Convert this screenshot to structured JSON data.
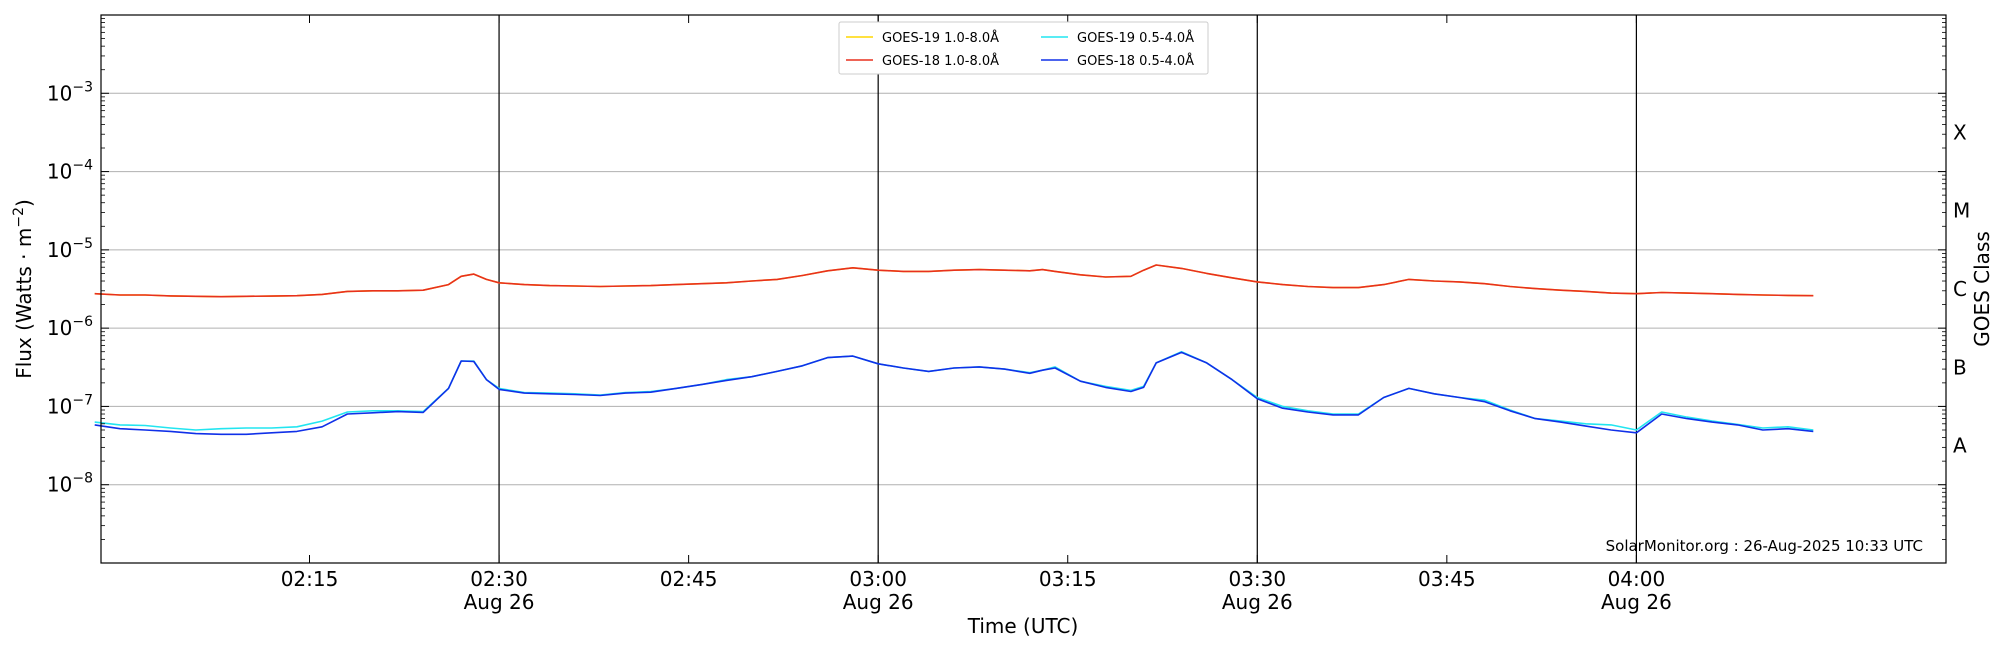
{
  "chart_data": {
    "type": "line",
    "xlabel": "Time (UTC)",
    "ylabel": "Flux (Watts · m",
    "ylabel_sup": "−2",
    "ylabel_end": ")",
    "right_ylabel": "GOES Class",
    "y_scale": "log",
    "ylim": [
      1e-09,
      0.01
    ],
    "xlim": [
      "01:58:30",
      "04:24:30"
    ],
    "grid": "horizontal at decades",
    "legend_position": "top-center",
    "annotation": "SolarMonitor.org : 26-Aug-2025 10:33 UTC",
    "y_ticks": [
      {
        "value": 1e-08,
        "base": "10",
        "exp": "−8"
      },
      {
        "value": 1e-07,
        "base": "10",
        "exp": "−7"
      },
      {
        "value": 1e-06,
        "base": "10",
        "exp": "−6"
      },
      {
        "value": 1e-05,
        "base": "10",
        "exp": "−5"
      },
      {
        "value": 0.0001,
        "base": "10",
        "exp": "−4"
      },
      {
        "value": 0.001,
        "base": "10",
        "exp": "−3"
      }
    ],
    "x_ticks": [
      {
        "time": "02:15",
        "label": "02:15",
        "date": ""
      },
      {
        "time": "02:30",
        "label": "02:30",
        "date": "Aug 26"
      },
      {
        "time": "02:45",
        "label": "02:45",
        "date": ""
      },
      {
        "time": "03:00",
        "label": "03:00",
        "date": "Aug 26"
      },
      {
        "time": "03:15",
        "label": "03:15",
        "date": ""
      },
      {
        "time": "03:30",
        "label": "03:30",
        "date": "Aug 26"
      },
      {
        "time": "03:45",
        "label": "03:45",
        "date": ""
      },
      {
        "time": "04:00",
        "label": "04:00",
        "date": "Aug 26"
      }
    ],
    "date_lines": [
      "02:30",
      "03:00",
      "03:30",
      "04:00"
    ],
    "goes_classes": [
      {
        "label": "A",
        "value": 3.16e-08
      },
      {
        "label": "B",
        "value": 3.16e-07
      },
      {
        "label": "C",
        "value": 3.16e-06
      },
      {
        "label": "M",
        "value": 3.16e-05
      },
      {
        "label": "X",
        "value": 0.000316
      }
    ],
    "x": [
      "01:58",
      "02:00",
      "02:02",
      "02:04",
      "02:06",
      "02:08",
      "02:10",
      "02:12",
      "02:14",
      "02:16",
      "02:18",
      "02:20",
      "02:22",
      "02:24",
      "02:26",
      "02:27",
      "02:28",
      "02:29",
      "02:30",
      "02:32",
      "02:34",
      "02:36",
      "02:38",
      "02:40",
      "02:42",
      "02:44",
      "02:46",
      "02:48",
      "02:50",
      "02:52",
      "02:54",
      "02:56",
      "02:58",
      "03:00",
      "03:02",
      "03:04",
      "03:06",
      "03:08",
      "03:10",
      "03:12",
      "03:13",
      "03:14",
      "03:16",
      "03:18",
      "03:20",
      "03:21",
      "03:22",
      "03:24",
      "03:26",
      "03:28",
      "03:30",
      "03:32",
      "03:34",
      "03:36",
      "03:38",
      "03:40",
      "03:42",
      "03:44",
      "03:46",
      "03:48",
      "03:50",
      "03:52",
      "03:54",
      "03:56",
      "03:58",
      "04:00",
      "04:02",
      "04:04",
      "04:06",
      "04:08",
      "04:10",
      "04:12",
      "04:14"
    ],
    "series": [
      {
        "name": "GOES-19 1.0-8.0Å",
        "color": "#ffd700",
        "values": [
          2.75e-06,
          2.65e-06,
          2.65e-06,
          2.58e-06,
          2.55e-06,
          2.52e-06,
          2.55e-06,
          2.57e-06,
          2.6e-06,
          2.7e-06,
          2.95e-06,
          3e-06,
          3e-06,
          3.05e-06,
          3.6e-06,
          4.6e-06,
          4.9e-06,
          4.2e-06,
          3.8e-06,
          3.6e-06,
          3.5e-06,
          3.45e-06,
          3.4e-06,
          3.45e-06,
          3.5e-06,
          3.6e-06,
          3.7e-06,
          3.8e-06,
          4e-06,
          4.2e-06,
          4.7e-06,
          5.4e-06,
          5.9e-06,
          5.5e-06,
          5.3e-06,
          5.3e-06,
          5.5e-06,
          5.6e-06,
          5.5e-06,
          5.4e-06,
          5.6e-06,
          5.3e-06,
          4.8e-06,
          4.5e-06,
          4.6e-06,
          5.5e-06,
          6.4e-06,
          5.8e-06,
          5e-06,
          4.4e-06,
          3.9e-06,
          3.6e-06,
          3.4e-06,
          3.3e-06,
          3.3e-06,
          3.6e-06,
          4.2e-06,
          4e-06,
          3.9e-06,
          3.7e-06,
          3.4e-06,
          3.2e-06,
          3.05e-06,
          2.95e-06,
          2.8e-06,
          2.75e-06,
          2.85e-06,
          2.8e-06,
          2.75e-06,
          2.7e-06,
          2.65e-06,
          2.62e-06,
          2.6e-06
        ]
      },
      {
        "name": "GOES-18 1.0-8.0Å",
        "color": "#e8301e",
        "values": [
          2.75e-06,
          2.65e-06,
          2.65e-06,
          2.58e-06,
          2.55e-06,
          2.52e-06,
          2.55e-06,
          2.57e-06,
          2.6e-06,
          2.7e-06,
          2.95e-06,
          3e-06,
          3e-06,
          3.05e-06,
          3.6e-06,
          4.6e-06,
          4.9e-06,
          4.2e-06,
          3.8e-06,
          3.6e-06,
          3.5e-06,
          3.45e-06,
          3.4e-06,
          3.45e-06,
          3.5e-06,
          3.6e-06,
          3.7e-06,
          3.8e-06,
          4e-06,
          4.2e-06,
          4.7e-06,
          5.4e-06,
          5.9e-06,
          5.5e-06,
          5.3e-06,
          5.3e-06,
          5.5e-06,
          5.6e-06,
          5.5e-06,
          5.4e-06,
          5.6e-06,
          5.3e-06,
          4.8e-06,
          4.5e-06,
          4.6e-06,
          5.5e-06,
          6.4e-06,
          5.8e-06,
          5e-06,
          4.4e-06,
          3.9e-06,
          3.6e-06,
          3.4e-06,
          3.3e-06,
          3.3e-06,
          3.6e-06,
          4.2e-06,
          4e-06,
          3.9e-06,
          3.7e-06,
          3.4e-06,
          3.2e-06,
          3.05e-06,
          2.95e-06,
          2.8e-06,
          2.75e-06,
          2.85e-06,
          2.8e-06,
          2.75e-06,
          2.7e-06,
          2.65e-06,
          2.62e-06,
          2.6e-06
        ]
      },
      {
        "name": "GOES-19 0.5-4.0Å",
        "color": "#22e5f0",
        "values": [
          6.3e-08,
          5.8e-08,
          5.7e-08,
          5.3e-08,
          5e-08,
          5.2e-08,
          5.3e-08,
          5.3e-08,
          5.5e-08,
          6.5e-08,
          8.5e-08,
          8.8e-08,
          8.8e-08,
          8.6e-08,
          1.7e-07,
          3.8e-07,
          3.8e-07,
          2.2e-07,
          1.7e-07,
          1.5e-07,
          1.48e-07,
          1.45e-07,
          1.4e-07,
          1.5e-07,
          1.55e-07,
          1.7e-07,
          1.9e-07,
          2.2e-07,
          2.4e-07,
          2.8e-07,
          3.3e-07,
          4.2e-07,
          4.4e-07,
          3.5e-07,
          3.1e-07,
          2.8e-07,
          3.1e-07,
          3.2e-07,
          3e-07,
          2.7e-07,
          2.9e-07,
          3.2e-07,
          2.1e-07,
          1.8e-07,
          1.6e-07,
          1.8e-07,
          3.6e-07,
          5e-07,
          3.6e-07,
          2.2e-07,
          1.3e-07,
          1e-07,
          8.8e-08,
          8e-08,
          8e-08,
          1.3e-07,
          1.7e-07,
          1.45e-07,
          1.3e-07,
          1.2e-07,
          9e-08,
          7e-08,
          6.5e-08,
          6e-08,
          5.8e-08,
          5e-08,
          8.5e-08,
          7.3e-08,
          6.5e-08,
          5.9e-08,
          5.3e-08,
          5.5e-08,
          5e-08
        ]
      },
      {
        "name": "GOES-18 0.5-4.0Å",
        "color": "#1030e8",
        "values": [
          5.8e-08,
          5.2e-08,
          5e-08,
          4.8e-08,
          4.5e-08,
          4.4e-08,
          4.4e-08,
          4.6e-08,
          4.8e-08,
          5.5e-08,
          8e-08,
          8.3e-08,
          8.6e-08,
          8.4e-08,
          1.7e-07,
          3.8e-07,
          3.75e-07,
          2.2e-07,
          1.65e-07,
          1.48e-07,
          1.45e-07,
          1.42e-07,
          1.38e-07,
          1.48e-07,
          1.52e-07,
          1.7e-07,
          1.9e-07,
          2.15e-07,
          2.4e-07,
          2.8e-07,
          3.3e-07,
          4.2e-07,
          4.4e-07,
          3.5e-07,
          3.1e-07,
          2.8e-07,
          3.1e-07,
          3.2e-07,
          3e-07,
          2.65e-07,
          2.9e-07,
          3.1e-07,
          2.1e-07,
          1.75e-07,
          1.55e-07,
          1.75e-07,
          3.6e-07,
          4.9e-07,
          3.6e-07,
          2.2e-07,
          1.25e-07,
          9.5e-08,
          8.5e-08,
          7.8e-08,
          7.8e-08,
          1.3e-07,
          1.7e-07,
          1.45e-07,
          1.3e-07,
          1.15e-07,
          8.8e-08,
          7e-08,
          6.3e-08,
          5.6e-08,
          5e-08,
          4.6e-08,
          8e-08,
          7e-08,
          6.3e-08,
          5.8e-08,
          5e-08,
          5.2e-08,
          4.8e-08
        ]
      }
    ]
  }
}
